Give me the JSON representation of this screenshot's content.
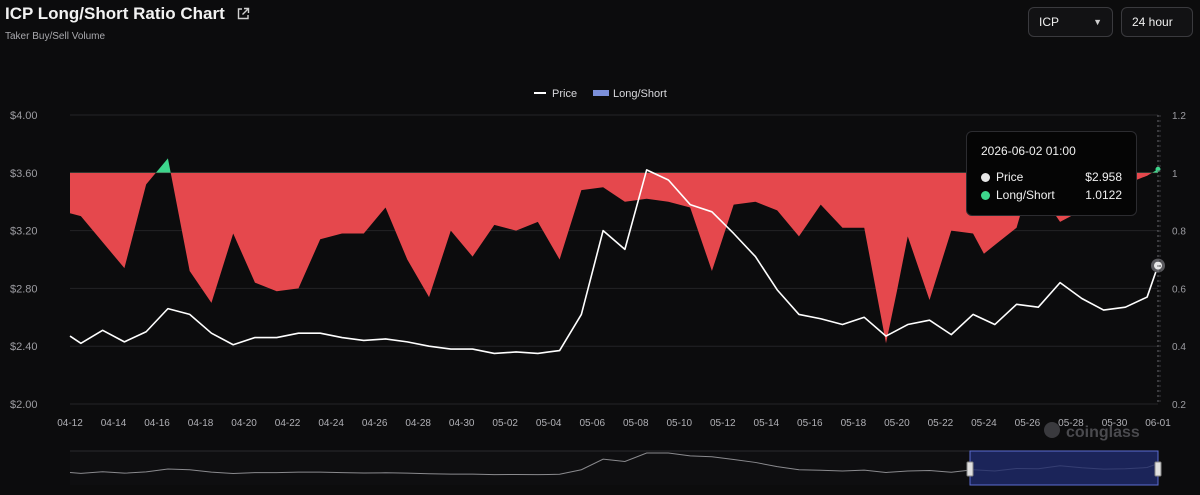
{
  "header": {
    "title": "ICP Long/Short Ratio Chart",
    "subtitle": "Taker Buy/Sell Volume"
  },
  "controls": {
    "coin": "ICP",
    "period": "24 hour"
  },
  "tooltip": {
    "date": "2026-06-02 01:00",
    "price_label": "Price",
    "price_value": "$2.958",
    "ratio_label": "Long/Short",
    "ratio_value": "1.0122"
  },
  "watermark": "coinglass",
  "colors": {
    "price": "#ffffff",
    "ratio_below_1": "#e5484d",
    "ratio_above_1": "#3dd68c",
    "legend_long_short": "#7b8fd9",
    "navigator_window": "#1f2a6b"
  },
  "chart_data": {
    "type": "line",
    "legend": [
      "Price",
      "Long/Short"
    ],
    "legend_position": "top-center",
    "grid": true,
    "x_tick_labels": [
      "04-12",
      "04-14",
      "04-16",
      "04-18",
      "04-20",
      "04-22",
      "04-24",
      "04-26",
      "04-28",
      "04-30",
      "05-02",
      "05-04",
      "05-06",
      "05-08",
      "05-10",
      "05-12",
      "05-14",
      "05-16",
      "05-18",
      "05-20",
      "05-22",
      "05-24",
      "05-26",
      "05-28",
      "05-30",
      "06-01"
    ],
    "y_left_ticks": [
      "$2.00",
      "$2.40",
      "$2.80",
      "$3.20",
      "$3.60",
      "$4.00"
    ],
    "y_left_range": [
      2.0,
      4.0
    ],
    "y_right_ticks": [
      "0.2",
      "0.4",
      "0.6",
      "0.8",
      "1",
      "1.2"
    ],
    "y_right_range": [
      0.2,
      1.2
    ],
    "ratio_baseline": 1.0,
    "x_range": [
      0,
      50
    ],
    "series": [
      {
        "name": "Price",
        "axis": "left",
        "x": [
          0,
          0.5,
          1.5,
          2.5,
          3.5,
          4.5,
          5.5,
          6.5,
          7.5,
          8.5,
          9.5,
          10.5,
          11.5,
          12.5,
          13.5,
          14.5,
          15.5,
          16.5,
          17.5,
          18.5,
          19.5,
          20.5,
          21.5,
          22,
          22.5,
          23.5,
          24.5,
          25.5,
          26.5,
          27.5,
          28.5,
          29.5,
          30.5,
          31.5,
          32.5,
          33.5,
          34.5,
          35.5,
          36.5,
          37.5,
          38.5,
          39.5,
          40.5,
          41.5,
          42.5,
          43.5,
          44.5,
          45.5,
          46.5,
          47.5,
          48.5,
          49.5,
          50
        ],
        "values": [
          2.47,
          2.42,
          2.51,
          2.43,
          2.5,
          2.66,
          2.62,
          2.49,
          2.41,
          2.46,
          2.46,
          2.49,
          2.49,
          2.46,
          2.44,
          2.45,
          2.43,
          2.4,
          2.38,
          2.38,
          2.35,
          2.36,
          2.35,
          2.36,
          2.37,
          2.62,
          3.2,
          3.07,
          3.62,
          3.55,
          3.38,
          3.33,
          3.18,
          3.02,
          2.79,
          2.62,
          2.59,
          2.55,
          2.6,
          2.47,
          2.55,
          2.58,
          2.48,
          2.62,
          2.55,
          2.69,
          2.67,
          2.84,
          2.73,
          2.65,
          2.67,
          2.74,
          2.958
        ]
      },
      {
        "name": "Long/Short",
        "axis": "right",
        "x": [
          0,
          0.5,
          1.5,
          2.5,
          3.5,
          4.5,
          5.5,
          6.5,
          7.5,
          8.5,
          9.5,
          10.5,
          11.5,
          12.5,
          13.5,
          14.5,
          15.5,
          16.5,
          17.5,
          18.5,
          19.5,
          20.5,
          21.5,
          22.5,
          23.5,
          24.5,
          25.5,
          26.5,
          27.5,
          28.5,
          29.5,
          30.5,
          31.5,
          32.5,
          33.5,
          34.5,
          35.5,
          36.5,
          37.5,
          38.0,
          38.5,
          39.5,
          40,
          40.5,
          41.5,
          42,
          42.5,
          43.5,
          44,
          44.5,
          45.5,
          46.5,
          47.5,
          48.5,
          49.5,
          50
        ],
        "values": [
          0.86,
          0.85,
          0.76,
          0.67,
          0.96,
          1.05,
          0.66,
          0.55,
          0.79,
          0.62,
          0.59,
          0.6,
          0.77,
          0.79,
          0.79,
          0.88,
          0.7,
          0.57,
          0.8,
          0.71,
          0.82,
          0.8,
          0.83,
          0.7,
          0.94,
          0.95,
          0.9,
          0.91,
          0.9,
          0.88,
          0.66,
          0.89,
          0.9,
          0.87,
          0.78,
          0.89,
          0.81,
          0.81,
          0.41,
          0.59,
          0.78,
          0.56,
          0.68,
          0.8,
          0.79,
          0.72,
          0.75,
          0.81,
          0.94,
          0.94,
          0.83,
          0.87,
          0.93,
          0.96,
          0.99,
          1.0122
        ]
      }
    ]
  }
}
